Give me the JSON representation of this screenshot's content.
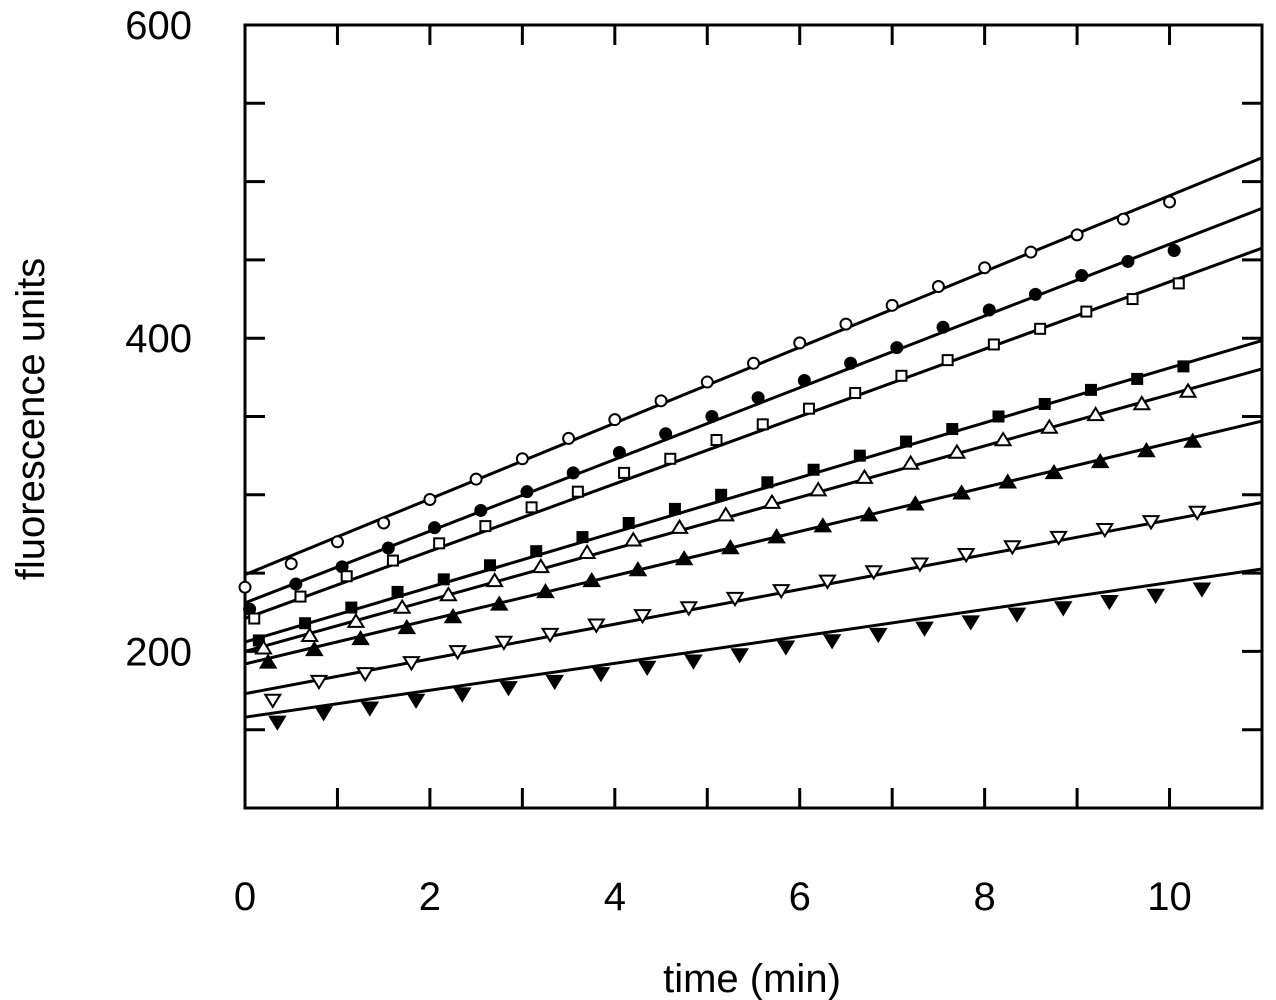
{
  "chart_data": {
    "type": "scatter",
    "title": "",
    "xlabel": "time (min)",
    "ylabel": "fluorescence units",
    "xlim": [
      0,
      11
    ],
    "ylim": [
      100,
      600
    ],
    "x_ticks": [
      0,
      2,
      4,
      6,
      8,
      10
    ],
    "y_ticks": [
      200,
      400,
      600
    ],
    "x_minor_ticks": [
      1,
      3,
      5,
      7,
      9
    ],
    "y_minor_ticks": [
      150,
      250,
      300,
      350,
      450,
      500,
      550
    ],
    "grid": false,
    "legend": "none",
    "series": [
      {
        "marker": "circle-open",
        "fit": [
          249,
          24.2
        ],
        "x": [
          0,
          0.5,
          1.0,
          1.5,
          2.0,
          2.5,
          3.0,
          3.5,
          4.0,
          4.5,
          5.0,
          5.5,
          6.0,
          6.5,
          7.0,
          7.5,
          8.0,
          8.5,
          9.0,
          9.5,
          10.0
        ],
        "y": [
          241,
          256,
          270,
          282,
          297,
          310,
          323,
          336,
          348,
          360,
          372,
          384,
          397,
          409,
          421,
          433,
          445,
          455,
          466,
          476,
          487
        ]
      },
      {
        "marker": "circle-filled",
        "fit": [
          231,
          22.9
        ],
        "x": [
          0.05,
          0.55,
          1.05,
          1.55,
          2.05,
          2.55,
          3.05,
          3.55,
          4.05,
          4.55,
          5.05,
          5.55,
          6.05,
          6.55,
          7.05,
          7.55,
          8.05,
          8.55,
          9.05,
          9.55,
          10.05
        ],
        "y": [
          227,
          243,
          254,
          266,
          279,
          290,
          302,
          314,
          327,
          339,
          350,
          362,
          373,
          384,
          394,
          407,
          418,
          428,
          440,
          449,
          456
        ]
      },
      {
        "marker": "square-open",
        "fit": [
          221,
          21.5
        ],
        "x": [
          0.1,
          0.6,
          1.1,
          1.6,
          2.1,
          2.6,
          3.1,
          3.6,
          4.1,
          4.6,
          5.1,
          5.6,
          6.1,
          6.6,
          7.1,
          7.6,
          8.1,
          8.6,
          9.1,
          9.6,
          10.1
        ],
        "y": [
          221,
          235,
          248,
          258,
          269,
          280,
          292,
          302,
          314,
          323,
          335,
          345,
          355,
          365,
          376,
          386,
          396,
          406,
          417,
          425,
          435
        ]
      },
      {
        "marker": "square-filled",
        "fit": [
          206,
          17.5
        ],
        "x": [
          0.15,
          0.65,
          1.15,
          1.65,
          2.15,
          2.65,
          3.15,
          3.65,
          4.15,
          4.65,
          5.15,
          5.65,
          6.15,
          6.65,
          7.15,
          7.65,
          8.15,
          8.65,
          9.15,
          9.65,
          10.15
        ],
        "y": [
          207,
          218,
          228,
          238,
          246,
          255,
          264,
          273,
          282,
          291,
          300,
          308,
          316,
          325,
          334,
          342,
          350,
          358,
          367,
          374,
          382
        ]
      },
      {
        "marker": "triangle-up-open",
        "fit": [
          200,
          16.4
        ],
        "x": [
          0.2,
          0.7,
          1.2,
          1.7,
          2.2,
          2.7,
          3.2,
          3.7,
          4.2,
          4.7,
          5.2,
          5.7,
          6.2,
          6.7,
          7.2,
          7.7,
          8.2,
          8.7,
          9.2,
          9.7,
          10.2
        ],
        "y": [
          202,
          210,
          219,
          228,
          236,
          245,
          254,
          263,
          271,
          279,
          287,
          295,
          303,
          311,
          320,
          327,
          335,
          343,
          351,
          358,
          366
        ]
      },
      {
        "marker": "triangle-up-filled",
        "fit": [
          192,
          14.1
        ],
        "x": [
          0.25,
          0.75,
          1.25,
          1.75,
          2.25,
          2.75,
          3.25,
          3.75,
          4.25,
          4.75,
          5.25,
          5.75,
          6.25,
          6.75,
          7.25,
          7.75,
          8.25,
          8.75,
          9.25,
          9.75,
          10.25
        ],
        "y": [
          193,
          201,
          208,
          215,
          222,
          230,
          238,
          245,
          252,
          259,
          266,
          273,
          280,
          287,
          294,
          301,
          308,
          314,
          321,
          328,
          334
        ]
      },
      {
        "marker": "triangle-down-open",
        "fit": [
          173,
          11.1
        ],
        "x": [
          0.3,
          0.8,
          1.3,
          1.8,
          2.3,
          2.8,
          3.3,
          3.8,
          4.3,
          4.8,
          5.3,
          5.8,
          6.3,
          6.8,
          7.3,
          7.8,
          8.3,
          8.8,
          9.3,
          9.8,
          10.3
        ],
        "y": [
          169,
          181,
          186,
          193,
          200,
          206,
          211,
          217,
          223,
          228,
          234,
          239,
          245,
          251,
          256,
          262,
          267,
          273,
          278,
          283,
          289
        ]
      },
      {
        "marker": "triangle-down-filled",
        "fit": [
          158,
          8.6
        ],
        "x": [
          0.35,
          0.85,
          1.35,
          1.85,
          2.35,
          2.85,
          3.35,
          3.85,
          4.35,
          4.85,
          5.35,
          5.85,
          6.35,
          6.85,
          7.35,
          7.85,
          8.35,
          8.85,
          9.35,
          9.85,
          10.35
        ],
        "y": [
          155,
          161,
          164,
          169,
          173,
          177,
          181,
          186,
          190,
          194,
          198,
          203,
          207,
          211,
          215,
          219,
          224,
          228,
          232,
          236,
          240
        ]
      }
    ]
  }
}
